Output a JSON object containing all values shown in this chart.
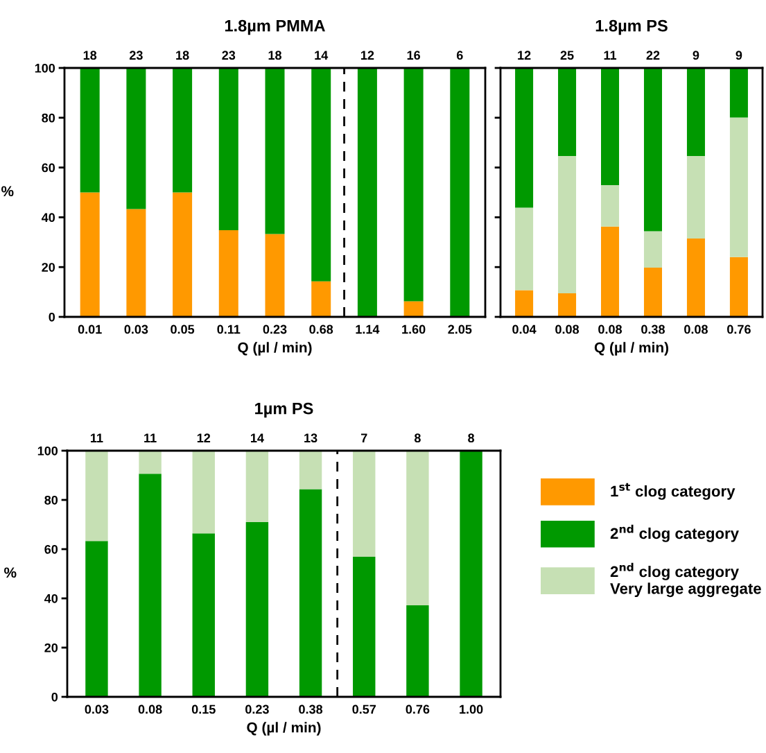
{
  "chart_data": [
    {
      "type": "bar",
      "title": "1.8µm PMMA",
      "xlabel": "Q (µl / min)",
      "ylabel": "%",
      "stacked": true,
      "categories": [
        "0.01",
        "0.03",
        "0.05",
        "0.11",
        "0.23",
        "0.68",
        "1.14",
        "1.60",
        "2.05"
      ],
      "series": [
        {
          "color": "#ff9900",
          "values": [
            50,
            43.3,
            50,
            34.8,
            33.3,
            14.3,
            0,
            6.3,
            0
          ]
        },
        {
          "color": "#009900",
          "values": [
            50,
            56.7,
            50,
            65.2,
            66.7,
            85.7,
            100,
            93.7,
            100
          ]
        }
      ],
      "annotations": [
        "18",
        "23",
        "18",
        "23",
        "18",
        "14",
        "12",
        "16",
        "6"
      ],
      "ylim": [
        0,
        100
      ],
      "yticks": [
        0,
        20,
        40,
        60,
        80,
        100
      ],
      "grid": false
    },
    {
      "type": "bar",
      "title": "1.8µm PS",
      "xlabel": "Q (µl / min)",
      "stacked": true,
      "categories": [
        "0.04",
        "0.08",
        "0.08",
        "0.38",
        "0.08",
        "0.76"
      ],
      "series": [
        {
          "name": "1$^{st}$ clog category",
          "color": "#ff9900",
          "values": [
            10.7,
            9.5,
            36.3,
            19.8,
            31.5,
            24.0
          ]
        },
        {
          "name": "2$^{nd}$ clog category\nVery large aggregate",
          "color": "#c6e0b4",
          "values": [
            33.2,
            55.1,
            16.6,
            14.6,
            33.1,
            56.1
          ]
        },
        {
          "name": "2$^{nd}$ clog category",
          "color": "#009900",
          "values": [
            56.1,
            35.4,
            47.1,
            65.6,
            35.4,
            19.9
          ]
        }
      ],
      "annotations": [
        "12",
        "25",
        "11",
        "22",
        "9",
        "9"
      ],
      "ylim": [
        0,
        100
      ],
      "yticks": [
        0,
        20,
        40,
        60,
        80,
        100
      ],
      "tick_labels": "x",
      "grid": false,
      "legend": "bottom"
    },
    {
      "type": "bar",
      "title": "1µm PS",
      "xlabel": "Q (µl / min)",
      "ylabel": "%",
      "stacked": true,
      "categories": [
        "0.03",
        "0.08",
        "0.15",
        "0.23",
        "0.38",
        "0.57",
        "0.76",
        "1.00"
      ],
      "series": [
        {
          "color": "#009900",
          "values": [
            63.3,
            90.6,
            66.4,
            71.0,
            84.4,
            56.9,
            37.2,
            100
          ]
        },
        {
          "color": "#c6e0b4",
          "values": [
            36.7,
            9.4,
            33.6,
            29.0,
            15.6,
            43.1,
            62.8,
            0
          ]
        }
      ],
      "annotations": [
        "11",
        "11",
        "12",
        "14",
        "13",
        "7",
        "8",
        "8"
      ],
      "ylim": [
        0,
        100
      ],
      "yticks": [
        0,
        20,
        40,
        60,
        80,
        100
      ],
      "grid": false
    }
  ]
}
